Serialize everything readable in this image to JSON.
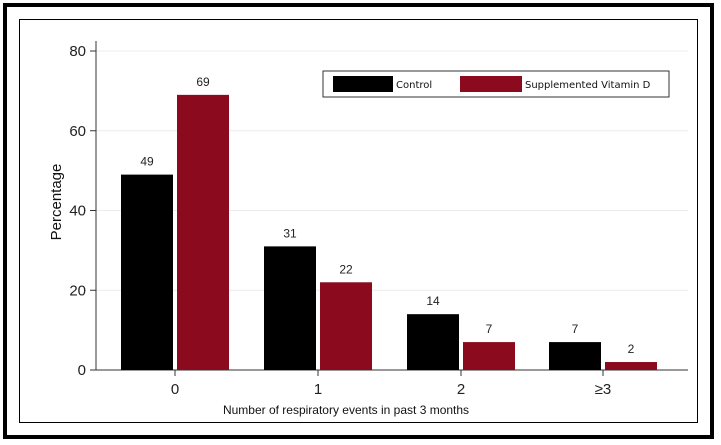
{
  "chart_data": {
    "type": "bar",
    "categories": [
      "0",
      "1",
      "2",
      "≥3"
    ],
    "series": [
      {
        "name": "Control",
        "values": [
          49,
          31,
          14,
          7
        ],
        "color": "#000000"
      },
      {
        "name": "Supplemented Vitamin D",
        "values": [
          69,
          22,
          7,
          2
        ],
        "color": "#8b0a1e"
      }
    ],
    "xlabel": "Number of respiratory events in past 3 months",
    "ylabel": "Percentage",
    "ylim": [
      0,
      80
    ],
    "yticks": [
      0,
      20,
      40,
      60,
      80
    ],
    "data_labels": true,
    "grid": true,
    "legend_position": "top-right"
  }
}
